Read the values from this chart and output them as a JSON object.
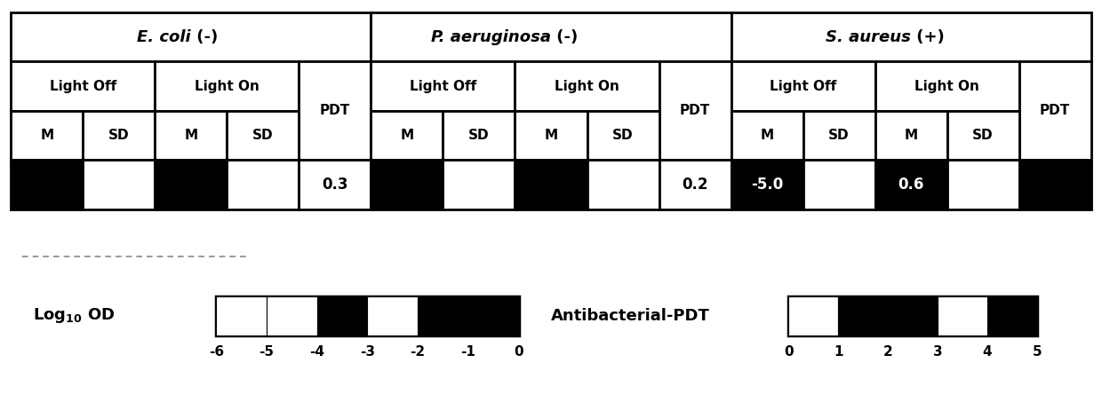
{
  "section_names": [
    "E. coli (-)",
    "P. aeruginosa (-)",
    "S. aureus (+)"
  ],
  "data_cells": [
    {
      "bg": "black",
      "text": "",
      "tc": "white"
    },
    {
      "bg": "white",
      "text": "",
      "tc": "black"
    },
    {
      "bg": "black",
      "text": "",
      "tc": "white"
    },
    {
      "bg": "white",
      "text": "",
      "tc": "black"
    },
    {
      "bg": "white",
      "text": "0.3",
      "tc": "black"
    },
    {
      "bg": "black",
      "text": "",
      "tc": "white"
    },
    {
      "bg": "white",
      "text": "",
      "tc": "black"
    },
    {
      "bg": "black",
      "text": "",
      "tc": "white"
    },
    {
      "bg": "white",
      "text": "",
      "tc": "black"
    },
    {
      "bg": "white",
      "text": "0.2",
      "tc": "black"
    },
    {
      "bg": "black",
      "text": "-5.0",
      "tc": "white"
    },
    {
      "bg": "white",
      "text": "",
      "tc": "black"
    },
    {
      "bg": "black",
      "text": "0.6",
      "tc": "white"
    },
    {
      "bg": "white",
      "text": "",
      "tc": "black"
    },
    {
      "bg": "black",
      "text": "",
      "tc": "white"
    }
  ],
  "legend1_label": "Log$_{10}$ OD",
  "legend1_ticks": [
    "-6",
    "-5",
    "-4",
    "-3",
    "-2",
    "-1",
    "0"
  ],
  "legend1_cell_colors": [
    "white",
    "white",
    "black",
    "white",
    "black",
    "black"
  ],
  "legend2_label": "Antibacterial-PDT",
  "legend2_ticks": [
    "0",
    "1",
    "2",
    "3",
    "4",
    "5"
  ],
  "legend2_cell_colors": [
    "white",
    "black",
    "black",
    "white",
    "black"
  ],
  "dashed_color": "#888888",
  "lw_table": 2.0,
  "lw_legend": 2.5,
  "fs_header": 13,
  "fs_sub": 11,
  "fs_data": 12,
  "fs_legend_label": 13,
  "fs_legend_tick": 11
}
